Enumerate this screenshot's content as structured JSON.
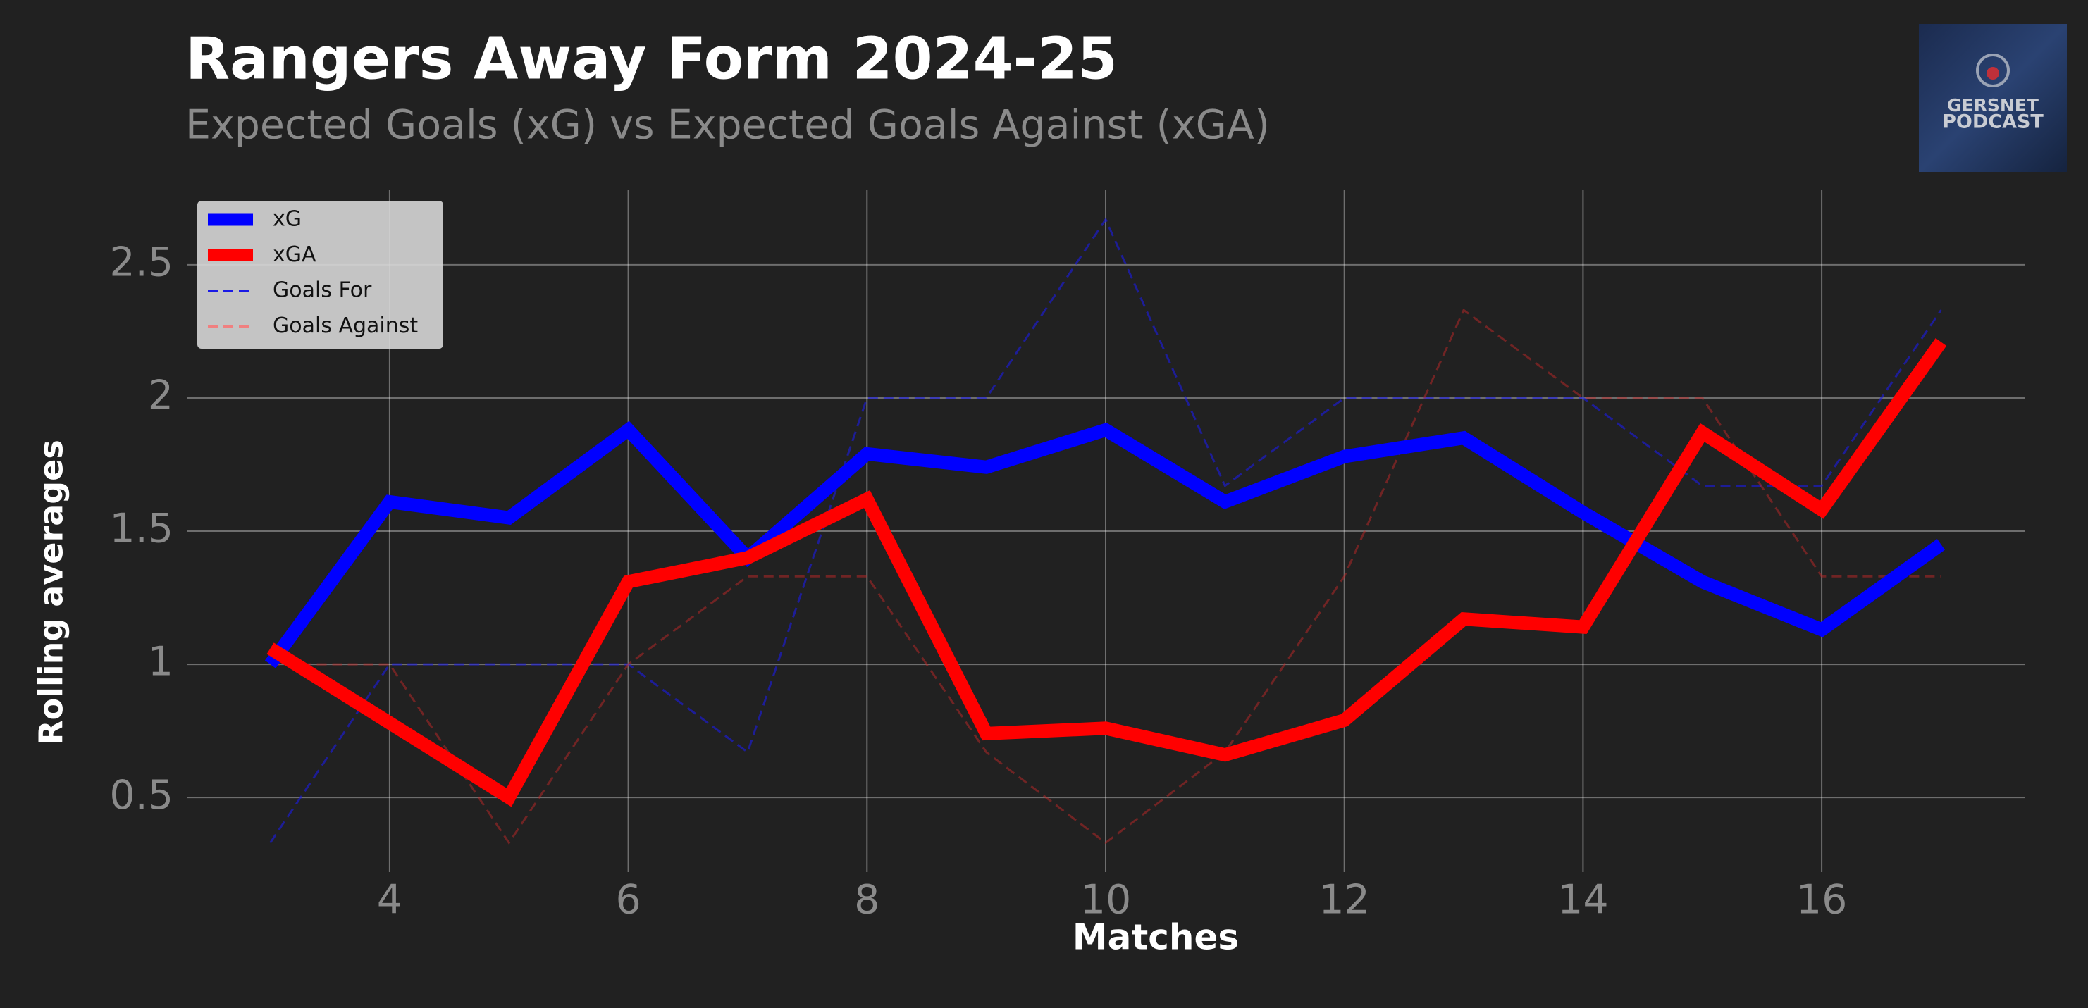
{
  "chart_data": {
    "type": "line",
    "title": "Rangers Away Form 2024-25",
    "subtitle": "Expected Goals (xG) vs Expected Goals Against (xGA)",
    "x_label": "Matches",
    "y_label": "Rolling averages",
    "x": [
      3,
      4,
      5,
      6,
      7,
      8,
      9,
      10,
      11,
      12,
      13,
      14,
      15,
      16,
      17
    ],
    "series": [
      {
        "name": "xG",
        "color": "#0000ff",
        "style": "solid",
        "values": [
          1.0,
          1.61,
          1.55,
          1.88,
          1.4,
          1.79,
          1.74,
          1.88,
          1.61,
          1.78,
          1.85,
          1.57,
          1.31,
          1.13,
          1.45
        ]
      },
      {
        "name": "xGA",
        "color": "#ff0000",
        "style": "solid",
        "values": [
          1.06,
          0.78,
          0.5,
          1.31,
          1.4,
          1.62,
          0.74,
          0.76,
          0.66,
          0.79,
          1.17,
          1.14,
          1.87,
          1.58,
          2.21
        ]
      },
      {
        "name": "Goals For",
        "color": "#1a1ae6",
        "style": "dashed",
        "values": [
          0.33,
          1.0,
          1.0,
          1.0,
          0.67,
          2.0,
          2.0,
          2.67,
          1.67,
          2.0,
          2.0,
          2.0,
          1.67,
          1.67,
          2.33
        ]
      },
      {
        "name": "Goals Against",
        "color": "#f08080",
        "style": "dashed",
        "values": [
          1.0,
          1.0,
          0.33,
          1.0,
          1.33,
          1.33,
          0.67,
          0.33,
          0.67,
          1.33,
          2.33,
          2.0,
          2.0,
          1.33,
          1.33
        ]
      }
    ],
    "xlim": [
      2.3,
      17.7
    ],
    "xticks": [
      4,
      6,
      8,
      10,
      12,
      14,
      16
    ],
    "ylim": [
      0.22,
      2.78
    ],
    "yticks": [
      0.5,
      1.0,
      1.5,
      2.0,
      2.5
    ],
    "grid": true,
    "legend": "upper left"
  },
  "logo": {
    "lines": [
      "GERSNET",
      "PODCAST"
    ]
  }
}
